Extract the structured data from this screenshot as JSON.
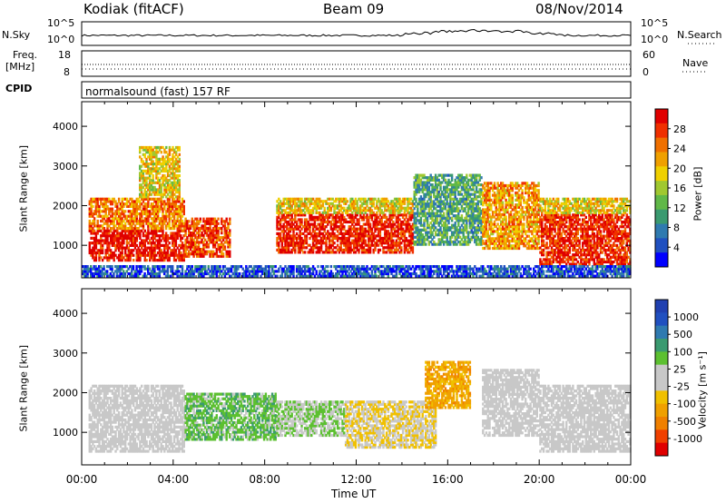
{
  "header": {
    "station": "Kodiak (fitACF)",
    "beam": "Beam 09",
    "date": "08/Nov/2014"
  },
  "strips": {
    "nsky_label": "N.Sky",
    "nsky_ticks": [
      "10^5",
      "10^0"
    ],
    "nsearch_label": "N.Search",
    "nsearch_ticks": [
      "10^5",
      "10^0"
    ],
    "freq_label_line1": "Freq.",
    "freq_label_line2": "[MHz]",
    "freq_ticks": [
      "18",
      "8"
    ],
    "nave_label": "Nave",
    "nave_ticks": [
      "60",
      "0"
    ],
    "cpid_label": "CPID",
    "cpid_value": "normalsound (fast) 157 RF"
  },
  "colors": {
    "power": [
      "#0000ff",
      "#2050c0",
      "#2f7ab0",
      "#3a9a70",
      "#60b848",
      "#a0c830",
      "#f0d000",
      "#f0a000",
      "#f07000",
      "#f03000",
      "#e00000"
    ],
    "velocity": [
      "#e00000",
      "#f04000",
      "#f08000",
      "#f0a000",
      "#f0c000",
      "#c8c8c8",
      "#c8c8c8",
      "#5cc030",
      "#3a9a70",
      "#2f7ab0",
      "#2050c0",
      "#2040b0"
    ],
    "ground_scatter": "#c8c8c8"
  },
  "chart_data": [
    {
      "type": "heatmap",
      "name": "power",
      "title": "",
      "xlabel": "Time UT",
      "ylabel": "Slant Range [km]",
      "colorbar_label": "Power [dB]",
      "colorbar_ticks": [
        "28",
        "24",
        "20",
        "16",
        "12",
        "8",
        "4"
      ],
      "colorbar_range": [
        0,
        32
      ],
      "xlim": [
        "00:00",
        "24:00"
      ],
      "ylim": [
        180,
        4620
      ],
      "yticks": [
        "4000",
        "3000",
        "2000",
        "1000"
      ],
      "xticks": [
        "00:00",
        "04:00",
        "08:00",
        "12:00",
        "16:00",
        "20:00",
        "00:00"
      ],
      "regions": [
        {
          "t": [
            0.3,
            4.5
          ],
          "r": [
            600,
            1400
          ],
          "level": 0.95
        },
        {
          "t": [
            0.3,
            4.5
          ],
          "r": [
            1400,
            2200
          ],
          "level": 0.75
        },
        {
          "t": [
            2.5,
            4.3
          ],
          "r": [
            2200,
            3500
          ],
          "level": 0.6
        },
        {
          "t": [
            4.5,
            6.5
          ],
          "r": [
            700,
            1700
          ],
          "level": 0.85
        },
        {
          "t": [
            8.5,
            14.5
          ],
          "r": [
            800,
            1800
          ],
          "level": 0.92
        },
        {
          "t": [
            8.5,
            14.5
          ],
          "r": [
            1800,
            2200
          ],
          "level": 0.6
        },
        {
          "t": [
            14.5,
            17.5
          ],
          "r": [
            1000,
            2800
          ],
          "level": 0.35
        },
        {
          "t": [
            17.5,
            20.0
          ],
          "r": [
            900,
            2600
          ],
          "level": 0.7
        },
        {
          "t": [
            20.0,
            24.0
          ],
          "r": [
            500,
            1800
          ],
          "level": 0.9
        },
        {
          "t": [
            20.0,
            24.0
          ],
          "r": [
            1800,
            2200
          ],
          "level": 0.6
        },
        {
          "t": [
            0.0,
            24.0
          ],
          "r": [
            200,
            500
          ],
          "level": 0.15
        }
      ]
    },
    {
      "type": "heatmap",
      "name": "velocity",
      "title": "",
      "xlabel": "Time UT",
      "ylabel": "Slant Range [km]",
      "colorbar_label": "Velocity [m s⁻¹]",
      "colorbar_ticks": [
        "1000",
        "500",
        "100",
        "25",
        "-25",
        "-100",
        "-500",
        "-1000"
      ],
      "colorbar_range": [
        -1000,
        1000
      ],
      "xlim": [
        "00:00",
        "24:00"
      ],
      "ylim": [
        180,
        4620
      ],
      "yticks": [
        "4000",
        "3000",
        "2000",
        "1000"
      ],
      "xticks": [
        "00:00",
        "04:00",
        "08:00",
        "12:00",
        "16:00",
        "20:00",
        "00:00"
      ],
      "regions": [
        {
          "t": [
            0.3,
            4.5
          ],
          "r": [
            500,
            2200
          ],
          "value": 0
        },
        {
          "t": [
            4.5,
            8.5
          ],
          "r": [
            800,
            2000
          ],
          "value": 250
        },
        {
          "t": [
            8.5,
            11.5
          ],
          "r": [
            900,
            1800
          ],
          "value": 150
        },
        {
          "t": [
            11.5,
            15.5
          ],
          "r": [
            600,
            1800
          ],
          "value": -150
        },
        {
          "t": [
            15.0,
            17.0
          ],
          "r": [
            1600,
            2800
          ],
          "value": -400
        },
        {
          "t": [
            17.5,
            20.0
          ],
          "r": [
            900,
            2600
          ],
          "value": 0
        },
        {
          "t": [
            20.0,
            24.0
          ],
          "r": [
            500,
            2200
          ],
          "value": 0
        }
      ]
    }
  ]
}
